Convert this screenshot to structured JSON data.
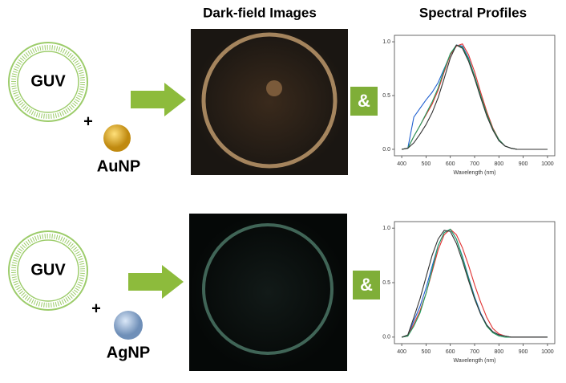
{
  "headings": {
    "images": "Dark-field Images",
    "spectra": "Spectral Profiles"
  },
  "rows": [
    {
      "vesicle": "GUV",
      "plus": "+",
      "particle": "AuNP",
      "connector": "&"
    },
    {
      "vesicle": "GUV",
      "plus": "+",
      "particle": "AgNP",
      "connector": "&"
    }
  ],
  "chart_data": [
    {
      "type": "line",
      "x_label": "Wavelength (nm)",
      "x": [
        400,
        425,
        450,
        475,
        500,
        525,
        550,
        575,
        600,
        625,
        650,
        675,
        700,
        725,
        750,
        775,
        800,
        825,
        850,
        875,
        900,
        950,
        1000
      ],
      "series": [
        {
          "color": "#1f5fd0",
          "values": [
            0,
            0.01,
            0.3,
            0.38,
            0.46,
            0.53,
            0.62,
            0.75,
            0.88,
            0.97,
            0.96,
            0.85,
            0.68,
            0.5,
            0.33,
            0.19,
            0.09,
            0.03,
            0.01,
            0,
            0,
            0,
            0
          ]
        },
        {
          "color": "#e03030",
          "values": [
            0,
            0.01,
            0.12,
            0.22,
            0.32,
            0.42,
            0.55,
            0.72,
            0.88,
            0.96,
            0.98,
            0.88,
            0.72,
            0.53,
            0.35,
            0.2,
            0.09,
            0.03,
            0.01,
            0,
            0,
            0,
            0
          ]
        },
        {
          "color": "#20a060",
          "values": [
            0,
            0.01,
            0.12,
            0.22,
            0.33,
            0.44,
            0.57,
            0.74,
            0.89,
            0.97,
            0.95,
            0.84,
            0.68,
            0.5,
            0.33,
            0.19,
            0.09,
            0.03,
            0.01,
            0,
            0,
            0,
            0
          ]
        },
        {
          "color": "#333333",
          "values": [
            0,
            0.01,
            0.06,
            0.14,
            0.23,
            0.34,
            0.48,
            0.66,
            0.85,
            0.97,
            0.94,
            0.82,
            0.66,
            0.48,
            0.31,
            0.18,
            0.08,
            0.03,
            0.01,
            0,
            0,
            0,
            0
          ]
        }
      ],
      "xlim": [
        370,
        1030
      ],
      "xticks": [
        400,
        500,
        600,
        700,
        800,
        900,
        1000
      ],
      "ylim": [
        -0.06,
        1.06
      ],
      "yticks": [
        {
          "value": 0,
          "label": "0.0"
        },
        0.5,
        {
          "value": 1,
          "label": "1.0"
        }
      ]
    },
    {
      "type": "line",
      "x_label": "Wavelength (nm)",
      "x": [
        400,
        425,
        450,
        475,
        500,
        525,
        550,
        575,
        600,
        625,
        650,
        675,
        700,
        725,
        750,
        775,
        800,
        825,
        850,
        875,
        900,
        950,
        1000
      ],
      "series": [
        {
          "color": "#1f5fd0",
          "values": [
            0,
            0.01,
            0.15,
            0.28,
            0.45,
            0.65,
            0.84,
            0.96,
            0.99,
            0.9,
            0.74,
            0.55,
            0.37,
            0.22,
            0.11,
            0.05,
            0.02,
            0.01,
            0,
            0,
            0,
            0,
            0
          ]
        },
        {
          "color": "#e03030",
          "values": [
            0,
            0.01,
            0.12,
            0.24,
            0.4,
            0.6,
            0.8,
            0.94,
            0.99,
            0.94,
            0.82,
            0.66,
            0.48,
            0.32,
            0.18,
            0.08,
            0.03,
            0.01,
            0,
            0,
            0,
            0,
            0
          ]
        },
        {
          "color": "#20a060",
          "values": [
            0,
            0.01,
            0.1,
            0.22,
            0.4,
            0.62,
            0.84,
            0.96,
            0.99,
            0.9,
            0.73,
            0.54,
            0.36,
            0.21,
            0.1,
            0.04,
            0.01,
            0,
            0,
            0,
            0,
            0,
            0
          ]
        },
        {
          "color": "#333333",
          "values": [
            0,
            0.02,
            0.18,
            0.35,
            0.55,
            0.75,
            0.9,
            0.98,
            0.97,
            0.86,
            0.7,
            0.52,
            0.35,
            0.21,
            0.11,
            0.05,
            0.02,
            0.01,
            0,
            0,
            0,
            0,
            0
          ]
        }
      ],
      "xlim": [
        370,
        1030
      ],
      "xticks": [
        400,
        500,
        600,
        700,
        800,
        900,
        1000
      ],
      "ylim": [
        -0.06,
        1.06
      ],
      "yticks": [
        {
          "value": 0,
          "label": "0.0"
        },
        0.5,
        {
          "value": 1,
          "label": "1.0"
        }
      ]
    }
  ]
}
